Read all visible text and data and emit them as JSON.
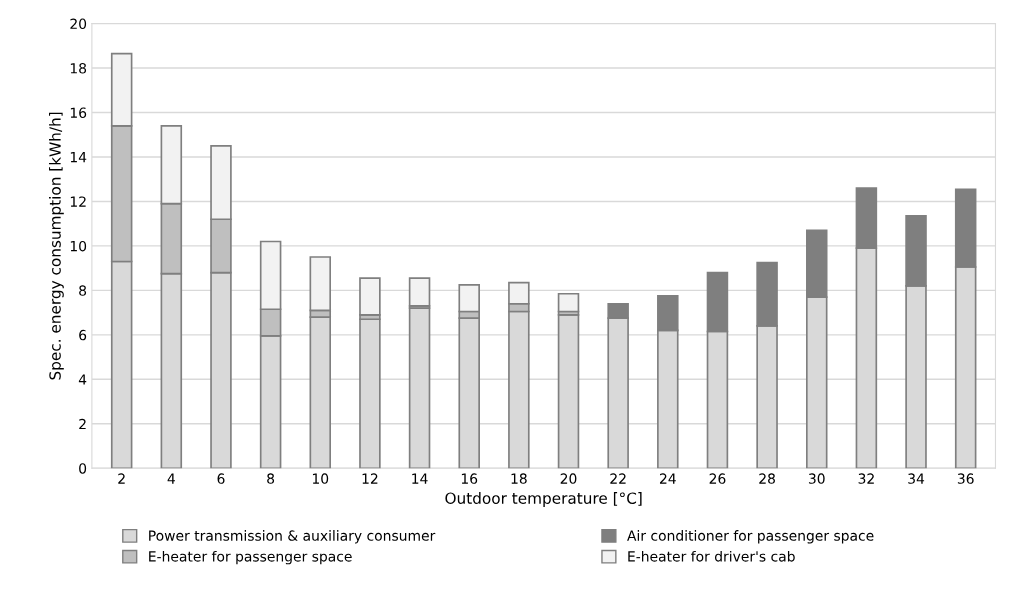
{
  "chart_data": {
    "type": "bar",
    "stacked": true,
    "xlabel": "Outdoor temperature [°C]",
    "ylabel": "Spec. energy consumption [kWh/h]",
    "categories": [
      "2",
      "4",
      "6",
      "8",
      "10",
      "12",
      "14",
      "16",
      "18",
      "20",
      "22",
      "24",
      "26",
      "28",
      "30",
      "32",
      "34",
      "36"
    ],
    "series": [
      {
        "name": "Power transmission & auxiliary consumer",
        "color": "#d9d9d9",
        "values": [
          9.3,
          8.75,
          8.8,
          5.95,
          6.8,
          6.7,
          7.2,
          6.75,
          7.05,
          6.9,
          6.75,
          6.2,
          6.15,
          6.4,
          7.7,
          9.9,
          8.2,
          9.05
        ]
      },
      {
        "name": "E-heater for passenger space",
        "color": "#bfbfbf",
        "values": [
          6.1,
          3.15,
          2.4,
          1.2,
          0.3,
          0.2,
          0.1,
          0.3,
          0.35,
          0.15,
          null,
          null,
          null,
          null,
          null,
          null,
          null,
          null
        ]
      },
      {
        "name": "Air conditioner for passenger space",
        "color": "#7f7f7f",
        "values": [
          null,
          null,
          null,
          null,
          null,
          null,
          null,
          null,
          null,
          null,
          0.65,
          1.55,
          2.65,
          2.85,
          3.0,
          2.7,
          3.15,
          3.5
        ]
      },
      {
        "name": "E-heater for driver's cab",
        "color": "#f2f2f2",
        "values": [
          3.25,
          3.5,
          3.3,
          3.05,
          2.4,
          1.65,
          1.25,
          1.2,
          0.95,
          0.8,
          null,
          null,
          null,
          null,
          null,
          null,
          null,
          null
        ]
      }
    ],
    "ylim": [
      0,
      20
    ],
    "yticks": [
      0,
      2,
      4,
      6,
      8,
      10,
      12,
      14,
      16,
      18,
      20
    ],
    "grid": "y",
    "legend": "bottom"
  }
}
